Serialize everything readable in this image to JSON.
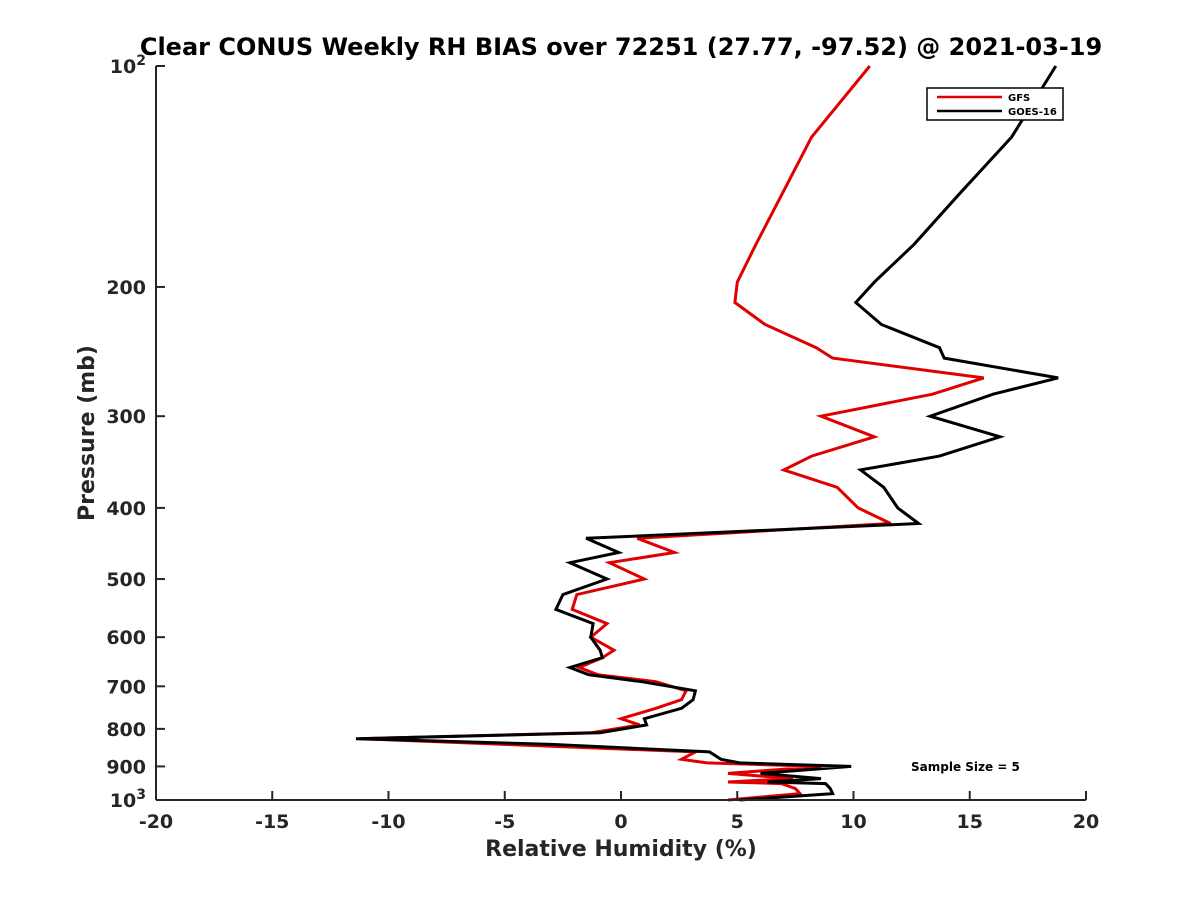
{
  "chart_data": {
    "type": "line",
    "title": "Clear CONUS Weekly RH BIAS over 72251 (27.77, -97.52) @ 2021-03-19",
    "xlabel": "Relative Humidity (%)",
    "ylabel": "Pressure (mb)",
    "xlim": [
      -20,
      20
    ],
    "ylim": [
      100,
      1000
    ],
    "y_scale": "log",
    "y_reversed": true,
    "x_ticks": [
      -20,
      -15,
      -10,
      -5,
      0,
      5,
      10,
      15,
      20
    ],
    "x_tick_labels": [
      "-20",
      "-15",
      "-10",
      "-5",
      "0",
      "5",
      "10",
      "15",
      "20"
    ],
    "y_ticks": [
      200,
      300,
      400,
      500,
      600,
      700,
      800,
      900
    ],
    "y_tick_labels": [
      "200",
      "300",
      "400",
      "500",
      "600",
      "700",
      "800",
      "900"
    ],
    "y_end_labels": [
      {
        "value": 100,
        "base": "10",
        "exp": "2"
      },
      {
        "value": 1000,
        "base": "10",
        "exp": "3"
      }
    ],
    "grid": false,
    "legend_position": "top-right",
    "annotation": "Sample Size = 5",
    "series": [
      {
        "name": "GFS",
        "color": "#e00000",
        "points": [
          [
            10.7,
            100
          ],
          [
            8.2,
            125
          ],
          [
            6.9,
            150
          ],
          [
            5.8,
            175
          ],
          [
            5.0,
            197
          ],
          [
            4.9,
            210
          ],
          [
            6.2,
            225
          ],
          [
            8.4,
            242
          ],
          [
            9.1,
            250
          ],
          [
            15.6,
            266
          ],
          [
            13.4,
            280
          ],
          [
            8.6,
            300
          ],
          [
            10.9,
            320
          ],
          [
            8.2,
            340
          ],
          [
            7.0,
            355
          ],
          [
            9.3,
            375
          ],
          [
            10.2,
            400
          ],
          [
            11.6,
            420
          ],
          [
            0.7,
            440
          ],
          [
            2.3,
            460
          ],
          [
            -0.5,
            475
          ],
          [
            1.0,
            500
          ],
          [
            -1.9,
            525
          ],
          [
            -2.1,
            550
          ],
          [
            -0.6,
            575
          ],
          [
            -1.3,
            600
          ],
          [
            -0.3,
            625
          ],
          [
            -0.8,
            640
          ],
          [
            -1.8,
            660
          ],
          [
            -1.0,
            675
          ],
          [
            1.5,
            690
          ],
          [
            2.8,
            710
          ],
          [
            2.6,
            730
          ],
          [
            1.5,
            750
          ],
          [
            0.0,
            775
          ],
          [
            0.8,
            790
          ],
          [
            -1.3,
            810
          ],
          [
            -11.2,
            825
          ],
          [
            -5.0,
            840
          ],
          [
            3.2,
            860
          ],
          [
            2.6,
            880
          ],
          [
            3.7,
            890
          ],
          [
            8.6,
            900
          ],
          [
            4.6,
            920
          ],
          [
            7.4,
            935
          ],
          [
            4.6,
            945
          ],
          [
            6.9,
            950
          ],
          [
            7.5,
            965
          ],
          [
            7.7,
            980
          ],
          [
            4.6,
            1000
          ]
        ]
      },
      {
        "name": "GOES-16",
        "color": "#000000",
        "points": [
          [
            18.7,
            100
          ],
          [
            16.8,
            125
          ],
          [
            14.5,
            150
          ],
          [
            12.6,
            175
          ],
          [
            10.9,
            197
          ],
          [
            10.1,
            210
          ],
          [
            11.2,
            225
          ],
          [
            13.7,
            242
          ],
          [
            13.9,
            250
          ],
          [
            18.8,
            266
          ],
          [
            16.0,
            280
          ],
          [
            13.3,
            300
          ],
          [
            16.3,
            320
          ],
          [
            13.7,
            340
          ],
          [
            10.3,
            355
          ],
          [
            11.3,
            375
          ],
          [
            11.9,
            400
          ],
          [
            12.8,
            420
          ],
          [
            -1.5,
            440
          ],
          [
            -0.1,
            460
          ],
          [
            -2.2,
            475
          ],
          [
            -0.6,
            500
          ],
          [
            -2.5,
            525
          ],
          [
            -2.8,
            550
          ],
          [
            -1.2,
            575
          ],
          [
            -1.3,
            600
          ],
          [
            -0.9,
            625
          ],
          [
            -0.8,
            640
          ],
          [
            -2.2,
            660
          ],
          [
            -1.4,
            675
          ],
          [
            0.9,
            690
          ],
          [
            3.2,
            710
          ],
          [
            3.1,
            730
          ],
          [
            2.6,
            750
          ],
          [
            1.0,
            775
          ],
          [
            1.1,
            790
          ],
          [
            -0.9,
            810
          ],
          [
            -11.4,
            825
          ],
          [
            -3.0,
            840
          ],
          [
            3.8,
            860
          ],
          [
            4.3,
            880
          ],
          [
            5.1,
            890
          ],
          [
            9.9,
            900
          ],
          [
            6.0,
            920
          ],
          [
            8.6,
            935
          ],
          [
            6.3,
            945
          ],
          [
            8.8,
            950
          ],
          [
            9.0,
            965
          ],
          [
            9.1,
            980
          ],
          [
            5.1,
            1000
          ]
        ]
      }
    ]
  }
}
